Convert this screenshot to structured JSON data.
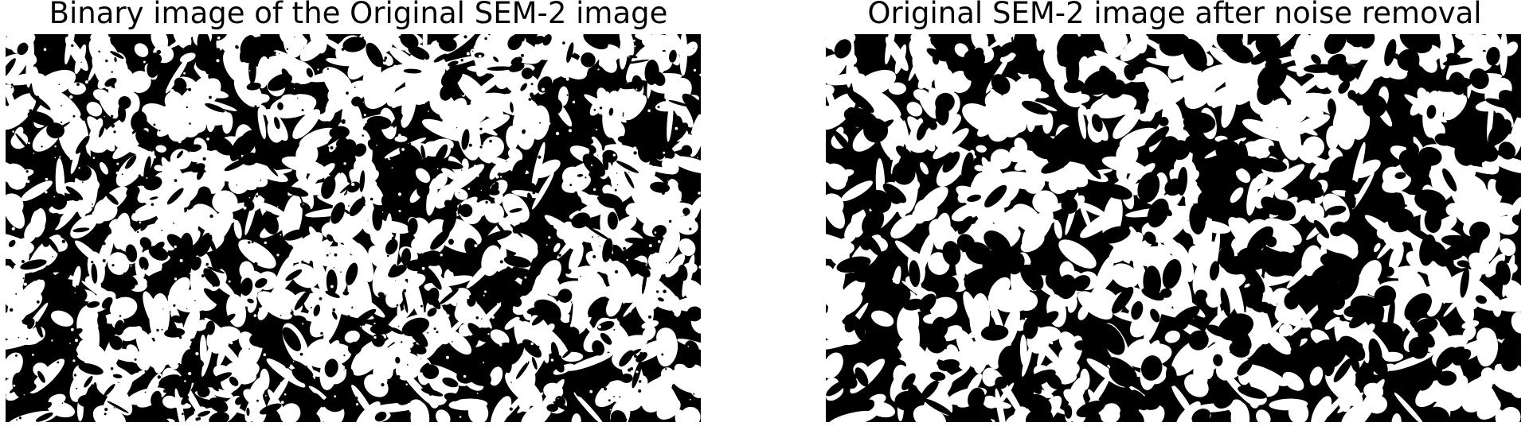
{
  "figure": {
    "panels": [
      {
        "title": "Binary image of the Original SEM-2 image",
        "image_description_name": "binary-sem-image"
      },
      {
        "title": "Original SEM-2 image after noise removal",
        "image_description_name": "denoised-sem-image"
      }
    ]
  },
  "colors": {
    "foreground": "#ffffff",
    "background": "#000000",
    "text": "#000000"
  }
}
